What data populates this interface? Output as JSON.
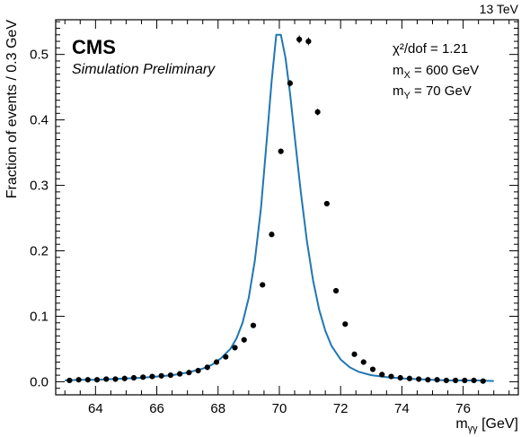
{
  "chart_data": {
    "type": "scatter",
    "energy_label": "13 TeV",
    "experiment": "CMS",
    "subtitle": "Simulation Preliminary",
    "xlabel_base": "m",
    "xlabel_sub": "γγ",
    "xlabel_unit": " [GeV]",
    "ylabel": "Fraction of events / 0.3 GeV",
    "xlim": [
      62.7,
      77.8
    ],
    "ylim": [
      -0.02,
      0.553
    ],
    "xticks": [
      64,
      66,
      68,
      70,
      72,
      74,
      76
    ],
    "yticks": [
      0.0,
      0.1,
      0.2,
      0.3,
      0.4,
      0.5
    ],
    "annotations": {
      "chi2_label": "χ²/dof  =  1.21",
      "mx_label": "m",
      "mx_sub": "X",
      "mx_value": " =  600 GeV",
      "my_label": "m",
      "my_sub": "Y",
      "my_value": " =  70 GeV"
    },
    "colors": {
      "points": "#000000",
      "fit": "#1f77b4"
    },
    "series": [
      {
        "type": "scatter",
        "x": [
          63.15,
          63.45,
          63.75,
          64.05,
          64.35,
          64.65,
          64.95,
          65.25,
          65.55,
          65.85,
          66.15,
          66.45,
          66.75,
          67.05,
          67.35,
          67.65,
          67.95,
          68.25,
          68.55,
          68.85,
          69.15,
          69.45,
          69.75,
          70.05,
          70.35,
          70.65,
          70.95,
          71.25,
          71.55,
          71.85,
          72.15,
          72.45,
          72.75,
          73.05,
          73.35,
          73.65,
          73.95,
          74.25,
          74.55,
          74.85,
          75.15,
          75.45,
          75.75,
          76.05,
          76.35,
          76.65
        ],
        "y": [
          0.002,
          0.003,
          0.003,
          0.003,
          0.004,
          0.004,
          0.005,
          0.006,
          0.007,
          0.008,
          0.009,
          0.01,
          0.012,
          0.014,
          0.017,
          0.022,
          0.03,
          0.038,
          0.052,
          0.064,
          0.086,
          0.148,
          0.225,
          0.352,
          0.456,
          0.523,
          0.52,
          0.412,
          0.272,
          0.139,
          0.088,
          0.042,
          0.03,
          0.019,
          0.011,
          0.008,
          0.006,
          0.005,
          0.004,
          0.003,
          0.003,
          0.002,
          0.002,
          0.002,
          0.002,
          0.001
        ],
        "yerr": [
          0.001,
          0.001,
          0.001,
          0.001,
          0.001,
          0.001,
          0.001,
          0.001,
          0.001,
          0.001,
          0.001,
          0.001,
          0.001,
          0.001,
          0.001,
          0.001,
          0.002,
          0.002,
          0.002,
          0.002,
          0.003,
          0.003,
          0.003,
          0.004,
          0.005,
          0.006,
          0.006,
          0.005,
          0.004,
          0.003,
          0.003,
          0.002,
          0.002,
          0.002,
          0.001,
          0.001,
          0.001,
          0.001,
          0.001,
          0.001,
          0.001,
          0.001,
          0.001,
          0.001,
          0.001,
          0.001
        ]
      },
      {
        "type": "line",
        "x": [
          63.0,
          63.5,
          64.0,
          64.5,
          65.0,
          65.5,
          66.0,
          66.5,
          67.0,
          67.5,
          67.8,
          68.1,
          68.4,
          68.6,
          68.8,
          69.0,
          69.2,
          69.4,
          69.6,
          69.75,
          69.9,
          70.05,
          70.2,
          70.35,
          70.5,
          70.7,
          70.9,
          71.1,
          71.3,
          71.5,
          71.7,
          72.0,
          72.3,
          72.6,
          73.0,
          73.5,
          74.0,
          74.5,
          75.0,
          75.5,
          76.0,
          76.5,
          77.0
        ],
        "y": [
          0.002,
          0.003,
          0.003,
          0.004,
          0.005,
          0.006,
          0.008,
          0.01,
          0.014,
          0.02,
          0.026,
          0.036,
          0.05,
          0.066,
          0.09,
          0.128,
          0.185,
          0.265,
          0.375,
          0.46,
          0.53,
          0.53,
          0.495,
          0.44,
          0.375,
          0.29,
          0.215,
          0.155,
          0.11,
          0.078,
          0.055,
          0.034,
          0.022,
          0.015,
          0.01,
          0.007,
          0.005,
          0.004,
          0.003,
          0.002,
          0.002,
          0.002,
          0.001
        ]
      }
    ]
  }
}
